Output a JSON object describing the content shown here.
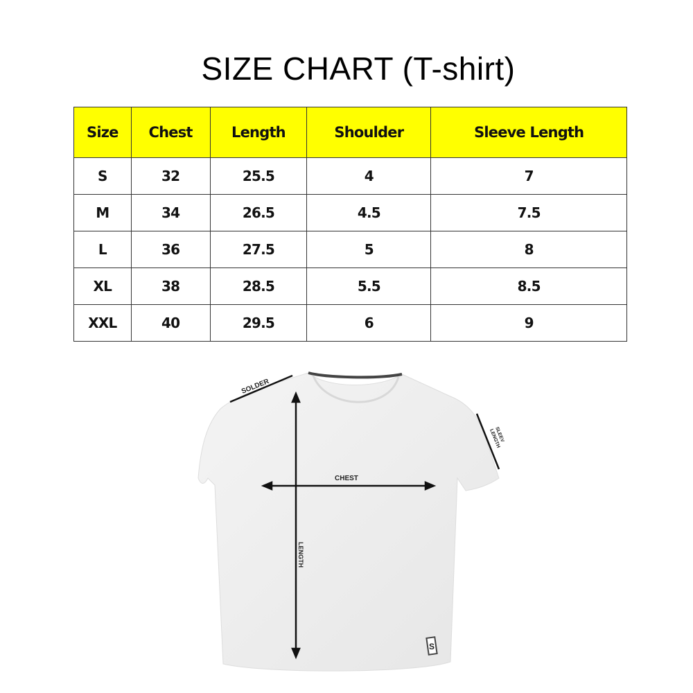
{
  "title": "SIZE CHART (T-shirt)",
  "chart_data": {
    "type": "table",
    "columns": [
      "Size",
      "Chest",
      "Length",
      "Shoulder",
      "Sleeve Length"
    ],
    "rows": [
      [
        "S",
        "32",
        "25.5",
        "4",
        "7"
      ],
      [
        "M",
        "34",
        "26.5",
        "4.5",
        "7.5"
      ],
      [
        "L",
        "36",
        "27.5",
        "5",
        "8"
      ],
      [
        "XL",
        "38",
        "28.5",
        "5.5",
        "8.5"
      ],
      [
        "XXL",
        "40",
        "29.5",
        "6",
        "9"
      ]
    ]
  },
  "colors": {
    "header_bg": "#ffff00",
    "border": "#333333"
  },
  "diagram": {
    "shoulder_label": "SOLDER",
    "sleeve_label_1": "SLEEV",
    "sleeve_label_2": "LENGTH",
    "chest_label": "CHEST",
    "length_label": "LENGTH",
    "tag_icon": "s-logo-tag-icon"
  }
}
